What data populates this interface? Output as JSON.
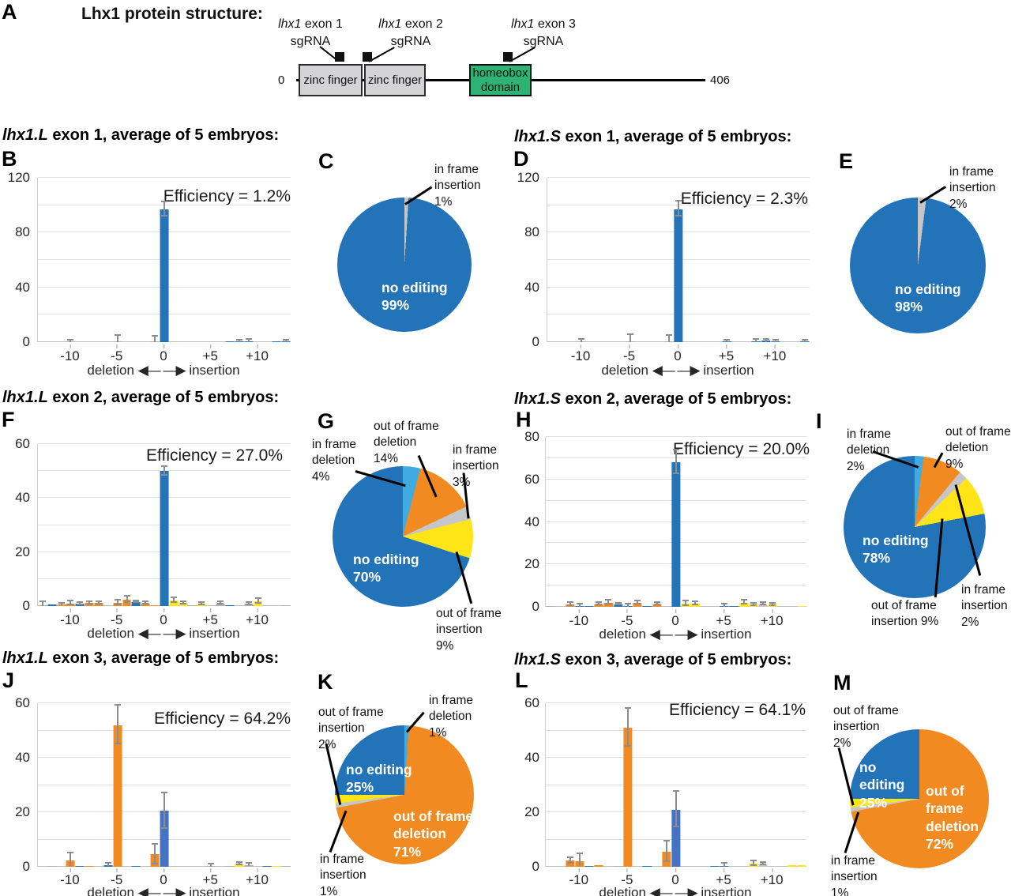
{
  "figure": {
    "panelA": {
      "letter": "A",
      "title": "Lhx1 protein structure:",
      "sgrna": [
        {
          "gene": "lhx1",
          "rest": " exon 1",
          "line2": "sgRNA"
        },
        {
          "gene": "lhx1",
          "rest": " exon 2",
          "line2": "sgRNA"
        },
        {
          "gene": "lhx1",
          "rest": " exon 3",
          "line2": "sgRNA"
        }
      ],
      "domains": [
        "zinc finger",
        "zinc finger",
        "homeobox domain"
      ],
      "scale_start": "0",
      "scale_end": "406"
    }
  },
  "axis": {
    "deletion": "deletion",
    "insertion": "insertion",
    "arrows": "◀— —▶",
    "xticks": [
      "-10",
      "-5",
      "0",
      "+5",
      "+10"
    ]
  },
  "palette": {
    "blue": "#2273b8",
    "royal": "#4472c4",
    "orange": "#f18a21",
    "lightblue": "#3fabe0",
    "yellow": "#ffe517",
    "silver": "#c5c6c8",
    "gray": "#aeb1b3"
  },
  "chart_data": {
    "bar_charts": {
      "B": {
        "type": "bar",
        "panel": "B",
        "title": {
          "gene": "lhx1.L",
          "rest": " exon 1, average of 5 embryos:"
        },
        "efficiency_label": "Efficiency = 1.2%",
        "efficiency_pct": 1.2,
        "ylim": [
          0,
          120
        ],
        "yticks": [
          0,
          40,
          80,
          120
        ],
        "grid_step": 20,
        "xlabel": "deletion (left) / insertion (right), indel size",
        "bars": [
          {
            "x": -10,
            "value": 0.2,
            "color": "gray",
            "err": 1.2
          },
          {
            "x": -5,
            "value": 0.3,
            "color": "gray",
            "err": 4.5
          },
          {
            "x": -1,
            "value": 0.3,
            "color": "gray",
            "err": 4
          },
          {
            "x": 0,
            "value": 97,
            "color": "blue",
            "err": 5
          },
          {
            "x": 7,
            "value": 0.4,
            "color": "blue"
          },
          {
            "x": 8,
            "value": 0.8,
            "color": "blue",
            "err": 0.6
          },
          {
            "x": 9,
            "value": 0.8,
            "color": "blue",
            "err": 1.2
          },
          {
            "x": 12,
            "value": 0.3,
            "color": "blue"
          },
          {
            "x": 13,
            "value": 0.4,
            "color": "blue",
            "err": 0.8
          }
        ]
      },
      "D": {
        "type": "bar",
        "panel": "D",
        "title": {
          "gene": "lhx1.S",
          "rest": " exon 1, average of 5 embryos:"
        },
        "efficiency_label": "Efficiency = 2.3%",
        "efficiency_pct": 2.3,
        "ylim": [
          0,
          120
        ],
        "yticks": [
          0,
          40,
          80,
          120
        ],
        "grid_step": 20,
        "xlabel": "deletion (left) / insertion (right), indel size",
        "bars": [
          {
            "x": -10,
            "value": 0.2,
            "color": "gray",
            "err": 1.5
          },
          {
            "x": -5,
            "value": 0.6,
            "color": "gray",
            "err": 4.5
          },
          {
            "x": -1,
            "value": 0.5,
            "color": "gray",
            "err": 4
          },
          {
            "x": 0,
            "value": 97,
            "color": "blue",
            "err": 5.5
          },
          {
            "x": 5,
            "value": 0.3,
            "color": "blue",
            "err": 0.8
          },
          {
            "x": 8,
            "value": 0.8,
            "color": "blue",
            "err": 0.8
          },
          {
            "x": 9,
            "value": 0.9,
            "color": "blue",
            "err": 1
          },
          {
            "x": 10,
            "value": 0.4,
            "color": "blue",
            "err": 0.6
          },
          {
            "x": 13,
            "value": 0.5,
            "color": "blue",
            "err": 0.5
          }
        ]
      },
      "F": {
        "type": "bar",
        "panel": "F",
        "title": {
          "gene": "lhx1.L",
          "rest": " exon 2, average of 5 embryos:"
        },
        "efficiency_label": "Efficiency = 27.0%",
        "efficiency_pct": 27.0,
        "ylim": [
          0,
          60
        ],
        "yticks": [
          0,
          20,
          40,
          60
        ],
        "grid_step": 10,
        "xlabel": "deletion (left) / insertion (right), indel size",
        "bars": [
          {
            "x": -13,
            "value": 0.2,
            "color": "gray",
            "err": 1.3
          },
          {
            "x": -12,
            "value": 0.5,
            "color": "blue"
          },
          {
            "x": -11,
            "value": 0.6,
            "color": "orange",
            "err": 0.4
          },
          {
            "x": -10,
            "value": 1.0,
            "color": "orange",
            "err": 0.7
          },
          {
            "x": -9,
            "value": 0.8,
            "color": "blue",
            "err": 0.4
          },
          {
            "x": -8,
            "value": 1.1,
            "color": "orange",
            "err": 0.5
          },
          {
            "x": -7,
            "value": 1.1,
            "color": "orange",
            "err": 0.5
          },
          {
            "x": -5,
            "value": 1.2,
            "color": "orange",
            "err": 0.8
          },
          {
            "x": -4,
            "value": 2.4,
            "color": "orange",
            "err": 1.2
          },
          {
            "x": -3,
            "value": 1.5,
            "color": "blue",
            "err": 0.3
          },
          {
            "x": -2,
            "value": 1.0,
            "color": "orange",
            "err": 0.4
          },
          {
            "x": -1,
            "value": 0.4,
            "color": "orange"
          },
          {
            "x": 0,
            "value": 50,
            "color": "blue",
            "err": 1.6
          },
          {
            "x": 1,
            "value": 2.0,
            "color": "yellow",
            "err": 0.8
          },
          {
            "x": 2,
            "value": 1.1,
            "color": "yellow",
            "err": 0.5
          },
          {
            "x": 3,
            "value": 0.3,
            "color": "gray"
          },
          {
            "x": 4,
            "value": 0.8,
            "color": "yellow",
            "err": 0.4
          },
          {
            "x": 6,
            "value": 1.0,
            "color": "gray",
            "err": 0.5
          },
          {
            "x": 7,
            "value": 0.2,
            "color": "blue"
          },
          {
            "x": 9,
            "value": 0.8,
            "color": "gray",
            "err": 0.4
          },
          {
            "x": 10,
            "value": 1.7,
            "color": "yellow",
            "err": 0.8
          },
          {
            "x": 13,
            "value": 0.3,
            "color": "gray"
          }
        ]
      },
      "H": {
        "type": "bar",
        "panel": "H",
        "title": {
          "gene": "lhx1.S",
          "rest": " exon 2, average of 5 embryos:"
        },
        "efficiency_label": "Efficiency = 20.0%",
        "efficiency_pct": 20.0,
        "ylim": [
          0,
          80
        ],
        "yticks": [
          0,
          20,
          40,
          60,
          80
        ],
        "grid_step": 10,
        "xlabel": "deletion (left) / insertion (right), indel size",
        "bars": [
          {
            "x": -13,
            "value": 0.2,
            "color": "gray"
          },
          {
            "x": -11,
            "value": 1.0,
            "color": "orange",
            "err": 0.7
          },
          {
            "x": -10,
            "value": 0.3,
            "color": "blue",
            "err": 0.9
          },
          {
            "x": -9,
            "value": 0.3,
            "color": "blue"
          },
          {
            "x": -8,
            "value": 1.3,
            "color": "orange",
            "err": 0.6
          },
          {
            "x": -7,
            "value": 2.0,
            "color": "orange",
            "err": 0.9
          },
          {
            "x": -6,
            "value": 1.0,
            "color": "blue",
            "err": 0.4
          },
          {
            "x": -5,
            "value": 0.4,
            "color": "blue",
            "err": 0.9
          },
          {
            "x": -4,
            "value": 1.8,
            "color": "orange",
            "err": 0.8
          },
          {
            "x": -3,
            "value": 0.3,
            "color": "blue"
          },
          {
            "x": -2,
            "value": 1.3,
            "color": "orange",
            "err": 0.5
          },
          {
            "x": 0,
            "value": 68,
            "color": "blue",
            "err": 5.5
          },
          {
            "x": 1,
            "value": 1.6,
            "color": "yellow",
            "err": 1.1
          },
          {
            "x": 2,
            "value": 1.5,
            "color": "yellow",
            "err": 0.7
          },
          {
            "x": 5,
            "value": 0.3,
            "color": "blue",
            "err": 0.9
          },
          {
            "x": 6,
            "value": 0.4,
            "color": "blue"
          },
          {
            "x": 7,
            "value": 2.0,
            "color": "yellow",
            "err": 1.0
          },
          {
            "x": 8,
            "value": 1.0,
            "color": "yellow",
            "err": 0.5
          },
          {
            "x": 9,
            "value": 1.3,
            "color": "silver",
            "err": 0.5
          },
          {
            "x": 10,
            "value": 1.0,
            "color": "yellow",
            "err": 0.6
          },
          {
            "x": 13,
            "value": 0.4,
            "color": "yellow"
          }
        ]
      },
      "J": {
        "type": "bar",
        "panel": "J",
        "title": {
          "gene": "lhx1.L",
          "rest": " exon 3, average of 5 embryos:"
        },
        "efficiency_label": "Efficiency = 64.2%",
        "efficiency_pct": 64.2,
        "ylim": [
          0,
          60
        ],
        "yticks": [
          0,
          20,
          40,
          60
        ],
        "grid_step": 10,
        "xlabel": "deletion (left) / insertion (right), indel size",
        "bars": [
          {
            "x": -12,
            "value": 0.2,
            "color": "gray"
          },
          {
            "x": -10,
            "value": 2.2,
            "color": "orange",
            "err": 2.6
          },
          {
            "x": -9,
            "value": 0.3,
            "color": "blue"
          },
          {
            "x": -8,
            "value": 0.3,
            "color": "orange"
          },
          {
            "x": -6,
            "value": 0.7,
            "color": "blue",
            "err": 0.5
          },
          {
            "x": -5,
            "value": 52,
            "color": "orange",
            "err": 7
          },
          {
            "x": -3,
            "value": 0.4,
            "color": "blue"
          },
          {
            "x": -1,
            "value": 4.5,
            "color": "orange",
            "err": 3.6
          },
          {
            "x": 0,
            "value": 20.5,
            "color": "royal",
            "err": 6.5
          },
          {
            "x": 5,
            "value": 0.1,
            "color": "gray",
            "err": 0.7
          },
          {
            "x": 7,
            "value": 0.2,
            "color": "gray"
          },
          {
            "x": 8,
            "value": 1.0,
            "color": "yellow",
            "err": 0.5
          },
          {
            "x": 9,
            "value": 0.7,
            "color": "gray",
            "err": 0.4
          },
          {
            "x": 11,
            "value": 0.2,
            "color": "blue"
          },
          {
            "x": 12,
            "value": 0.4,
            "color": "yellow"
          },
          {
            "x": 13,
            "value": 0.3,
            "color": "gray"
          }
        ]
      },
      "L": {
        "type": "bar",
        "panel": "L",
        "title": {
          "gene": "lhx1.S",
          "rest": " exon 3, average of 5 embryos:"
        },
        "efficiency_label": "Efficiency = 64.1%",
        "efficiency_pct": 64.1,
        "ylim": [
          0,
          60
        ],
        "yticks": [
          0,
          20,
          40,
          60
        ],
        "grid_step": 10,
        "xlabel": "deletion (left) / insertion (right), indel size",
        "bars": [
          {
            "x": -11,
            "value": 2.2,
            "color": "orange",
            "err": 0.9
          },
          {
            "x": -10,
            "value": 2.0,
            "color": "orange",
            "err": 2.5
          },
          {
            "x": -9,
            "value": 0.4,
            "color": "blue"
          },
          {
            "x": -8,
            "value": 0.7,
            "color": "orange"
          },
          {
            "x": -6,
            "value": 0.3,
            "color": "gray"
          },
          {
            "x": -5,
            "value": 51,
            "color": "orange",
            "err": 7
          },
          {
            "x": -3,
            "value": 0.4,
            "color": "blue"
          },
          {
            "x": -1,
            "value": 5.5,
            "color": "orange",
            "err": 3.8
          },
          {
            "x": 0,
            "value": 21,
            "color": "royal",
            "err": 6.5
          },
          {
            "x": 4,
            "value": 0.3,
            "color": "blue"
          },
          {
            "x": 5,
            "value": 0.3,
            "color": "blue",
            "err": 0.8
          },
          {
            "x": 8,
            "value": 1.2,
            "color": "yellow",
            "err": 0.8
          },
          {
            "x": 9,
            "value": 1.0,
            "color": "silver",
            "err": 0.4
          },
          {
            "x": 12,
            "value": 0.5,
            "color": "yellow"
          },
          {
            "x": 13,
            "value": 0.6,
            "color": "yellow"
          }
        ]
      }
    },
    "pie_charts": {
      "C": {
        "type": "pie",
        "panel": "C",
        "slices": [
          {
            "label": "in frame insertion",
            "pct": 1,
            "color": "silver"
          },
          {
            "label": "no editing",
            "pct": 99,
            "color": "blue"
          }
        ],
        "inside_labels": [
          "no editing\n99%"
        ],
        "callout_labels": [
          "in frame\ninsertion\n1%"
        ]
      },
      "E": {
        "type": "pie",
        "panel": "E",
        "slices": [
          {
            "label": "in frame insertion",
            "pct": 2,
            "color": "silver"
          },
          {
            "label": "no editing",
            "pct": 98,
            "color": "blue"
          }
        ],
        "inside_labels": [
          "no editing\n98%"
        ],
        "callout_labels": [
          "in frame\ninsertion\n2%"
        ]
      },
      "G": {
        "type": "pie",
        "panel": "G",
        "slices": [
          {
            "label": "in frame deletion",
            "pct": 4,
            "color": "lightblue"
          },
          {
            "label": "out of frame deletion",
            "pct": 14,
            "color": "orange"
          },
          {
            "label": "in frame insertion",
            "pct": 3,
            "color": "silver"
          },
          {
            "label": "out of frame insertion",
            "pct": 9,
            "color": "yellow"
          },
          {
            "label": "no editing",
            "pct": 70,
            "color": "blue"
          }
        ],
        "inside_labels": [
          "no editing\n70%"
        ],
        "callout_labels": [
          "in frame\ndeletion\n4%",
          "out of frame\ndeletion\n14%",
          "in frame\ninsertion\n3%",
          "out of frame\ninsertion\n9%"
        ]
      },
      "I": {
        "type": "pie",
        "panel": "I",
        "slices": [
          {
            "label": "in frame deletion",
            "pct": 2,
            "color": "lightblue"
          },
          {
            "label": "out of frame deletion",
            "pct": 9,
            "color": "orange"
          },
          {
            "label": "in frame insertion",
            "pct": 2,
            "color": "silver"
          },
          {
            "label": "out of frame insertion",
            "pct": 9,
            "color": "yellow"
          },
          {
            "label": "no editing",
            "pct": 78,
            "color": "blue"
          }
        ],
        "inside_labels": [
          "no editing\n78%"
        ],
        "callout_labels": [
          "in frame\ndeletion\n2%",
          "out of frame\ndeletion\n9%",
          "in frame\ninsertion\n2%",
          "out of frame\ninsertion 9%"
        ]
      },
      "K": {
        "type": "pie",
        "panel": "K",
        "slices": [
          {
            "label": "in frame deletion",
            "pct": 1,
            "color": "lightblue"
          },
          {
            "label": "out of frame deletion",
            "pct": 71,
            "color": "orange"
          },
          {
            "label": "in frame insertion",
            "pct": 1,
            "color": "silver"
          },
          {
            "label": "out of frame insertion",
            "pct": 2,
            "color": "yellow"
          },
          {
            "label": "no editing",
            "pct": 25,
            "color": "blue"
          }
        ],
        "inside_labels": [
          "no editing\n25%",
          "out of frame\ndeletion\n71%"
        ],
        "callout_labels": [
          "out of frame\ninsertion\n2%",
          "in frame\ndeletion\n1%",
          "in frame\ninsertion\n1%"
        ]
      },
      "M": {
        "type": "pie",
        "panel": "M",
        "slices": [
          {
            "label": "out of frame deletion",
            "pct": 72,
            "color": "orange"
          },
          {
            "label": "in frame insertion",
            "pct": 1,
            "color": "silver"
          },
          {
            "label": "out of frame insertion",
            "pct": 2,
            "color": "yellow"
          },
          {
            "label": "no editing",
            "pct": 25,
            "color": "blue"
          }
        ],
        "inside_labels": [
          "no\nediting\n25%",
          "out of\nframe\ndeletion\n72%"
        ],
        "callout_labels": [
          "out of frame\ninsertion\n2%",
          "in frame\ninsertion\n1%"
        ]
      }
    }
  }
}
